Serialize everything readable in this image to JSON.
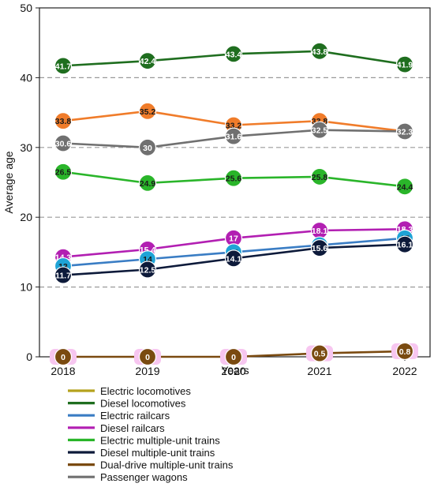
{
  "chart_data": {
    "type": "line",
    "title": "",
    "xlabel": "Years",
    "ylabel": "Average age",
    "categories": [
      "2018",
      "2019",
      "2020",
      "2021",
      "2022"
    ],
    "ylim": [
      0,
      50
    ],
    "yticks": [
      "0",
      "10",
      "20",
      "30",
      "40",
      "50"
    ],
    "grid": "dashed horizontal at 10, 20, 30, 40",
    "legend_position": "bottom",
    "legend": [
      {
        "name": "Electric locomotives",
        "color": "#b5a21d"
      },
      {
        "name": "Diesel locomotives",
        "color": "#1f6e1f"
      },
      {
        "name": "Electric railcars",
        "color": "#3a7dc4"
      },
      {
        "name": "Diesel railcars",
        "color": "#b21fb2"
      },
      {
        "name": "Electric multiple-unit trains",
        "color": "#2ab52a"
      },
      {
        "name": "Diesel multiple-unit trains",
        "color": "#0d1a3a"
      },
      {
        "name": "Dual-drive multiple-unit trains",
        "color": "#7a4a10"
      },
      {
        "name": "Passenger wagons",
        "color": "#707070"
      }
    ],
    "series": [
      {
        "line_color": "#1f6e1f",
        "marker_color": "#1f6e1f",
        "label_color": "#ffffff",
        "values": [
          41.7,
          42.4,
          43.4,
          43.8,
          41.9
        ],
        "labels": [
          "41.7",
          "42.4",
          "43.4",
          "43.8",
          "41.9"
        ]
      },
      {
        "line_color": "#f07c2a",
        "marker_color": "#f07c2a",
        "label_color": "#1a1a1a",
        "values": [
          33.8,
          35.2,
          33.2,
          33.8,
          32.3
        ],
        "labels": [
          "33.8",
          "35.2",
          "33.2",
          "33.8",
          ""
        ]
      },
      {
        "line_color": "#707070",
        "marker_color": "#707070",
        "label_color": "#ffffff",
        "values": [
          30.6,
          30,
          31.6,
          32.5,
          32.3
        ],
        "labels": [
          "30.6",
          "30",
          "31.6",
          "32.5",
          "32.3"
        ]
      },
      {
        "line_color": "#2ab52a",
        "marker_color": "#2ab52a",
        "label_color": "#1a1a1a",
        "values": [
          26.5,
          24.9,
          25.6,
          25.8,
          24.4
        ],
        "labels": [
          "26.5",
          "24.9",
          "25.6",
          "25.8",
          "24.4"
        ]
      },
      {
        "line_color": "#b21fb2",
        "marker_color": "#b21fb2",
        "label_color": "#ffffff",
        "values": [
          14.3,
          15.4,
          17,
          18.1,
          18.3
        ],
        "labels": [
          "14.3",
          "15.4",
          "17",
          "18.1",
          "18.3"
        ]
      },
      {
        "line_color": "#3a7dc4",
        "marker_color": "#1fa3d6",
        "label_color": "#1a1a1a",
        "values": [
          13,
          14,
          15,
          16,
          17
        ],
        "labels": [
          "13",
          "14",
          "15",
          "16",
          "17"
        ]
      },
      {
        "line_color": "#0d1a3a",
        "marker_color": "#0d1a3a",
        "label_color": "#ffffff",
        "values": [
          11.7,
          12.5,
          14.1,
          15.6,
          16.1
        ],
        "labels": [
          "11.7",
          "12.5",
          "14.1",
          "15.6",
          "16.1"
        ]
      },
      {
        "line_color": "#7a4a10",
        "marker_color": "#7a4a10",
        "label_color": "#ffffff",
        "marker_halo": "#f7c6f0",
        "values": [
          0,
          0,
          0,
          0.5,
          0.8
        ],
        "labels": [
          "0",
          "0",
          "0",
          "0.5",
          "0.8"
        ]
      }
    ]
  }
}
